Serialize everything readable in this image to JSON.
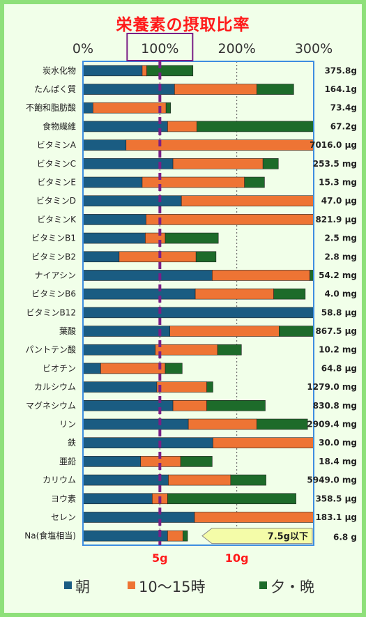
{
  "title": "栄養素の摂取比率",
  "colors": {
    "morning": "#1a5c82",
    "midday": "#ee7434",
    "evening": "#1d6b2a",
    "target": "#7a1f86",
    "frame": "#8ee07a",
    "plot_border": "#3d8ee0",
    "accent_red": "#ff1a1a",
    "note_fill": "#f4fca8"
  },
  "chart_data": {
    "type": "bar",
    "orientation": "horizontal",
    "stacked": true,
    "title": "栄養素の摂取比率",
    "xlim": [
      0,
      300
    ],
    "x_ticks": [
      "0%",
      "100%",
      "200%",
      "300%"
    ],
    "target_line": 100,
    "sodium_ticks": [
      "5g",
      "10g"
    ],
    "categories": [
      "炭水化物",
      "たんぱく質",
      "不飽和脂肪酸",
      "食物繊維",
      "ビタミンA",
      "ビタミンC",
      "ビタミンE",
      "ビタミンD",
      "ビタミンK",
      "ビタミンB1",
      "ビタミンB2",
      "ナイアシン",
      "ビタミンB6",
      "ビタミンB12",
      "葉酸",
      "パントテン酸",
      "ビオチン",
      "カルシウム",
      "マグネシウム",
      "リン",
      "鉄",
      "亜鉛",
      "カリウム",
      "ヨウ素",
      "セレン",
      "Na(食塩相当)"
    ],
    "amounts": [
      "375.8g",
      "164.1g",
      "73.4g",
      "67.2g",
      "7016.0 μg",
      "253.5 mg",
      "15.3 mg",
      "47.0 μg",
      "821.9 μg",
      "2.5 mg",
      "2.8 mg",
      "54.2 mg",
      "4.0 mg",
      "58.8 μg",
      "867.5 μg",
      "10.2 mg",
      "64.8 μg",
      "1279.0 mg",
      "830.8 mg",
      "2909.4 mg",
      "30.0 mg",
      "18.4 mg",
      "5949.0 mg",
      "358.5 μg",
      "183.1 μg",
      "6.8 g"
    ],
    "series": [
      {
        "name": "朝",
        "values": [
          77,
          119,
          13,
          110,
          56,
          117,
          77,
          128,
          82,
          81,
          47,
          168,
          146,
          300,
          113,
          94,
          23,
          96,
          117,
          137,
          169,
          75,
          111,
          90,
          145,
          110
        ]
      },
      {
        "name": "10〜15時",
        "values": [
          6,
          107,
          95,
          38,
          244,
          117,
          133,
          172,
          218,
          26,
          100,
          127,
          102,
          0,
          142,
          81,
          84,
          65,
          44,
          89,
          131,
          52,
          81,
          20,
          155,
          20
        ]
      },
      {
        "name": "夕・晩",
        "values": [
          60,
          48,
          6,
          152,
          0,
          20,
          26,
          0,
          0,
          69,
          26,
          5,
          41,
          0,
          45,
          31,
          22,
          8,
          76,
          66,
          0,
          41,
          46,
          167,
          0,
          6
        ]
      }
    ],
    "note": "7.5g以下"
  },
  "legend": [
    {
      "label": "朝",
      "key": "morning"
    },
    {
      "label": "10〜15時",
      "key": "midday"
    },
    {
      "label": "夕・晩",
      "key": "evening"
    }
  ]
}
